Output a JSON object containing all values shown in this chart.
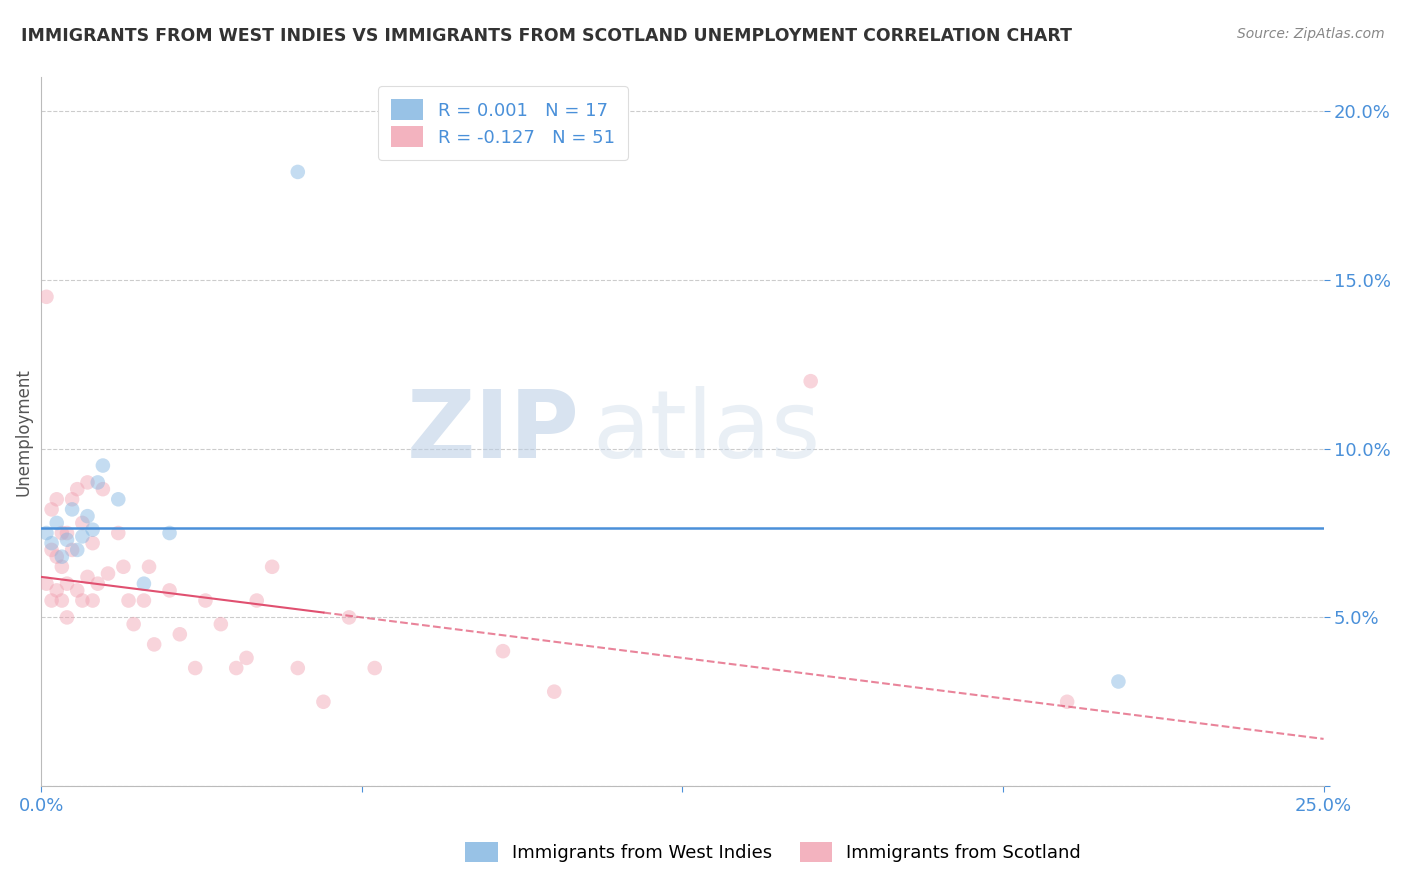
{
  "title": "IMMIGRANTS FROM WEST INDIES VS IMMIGRANTS FROM SCOTLAND UNEMPLOYMENT CORRELATION CHART",
  "source": "Source: ZipAtlas.com",
  "ylabel": "Unemployment",
  "xlim": [
    0.0,
    0.25
  ],
  "ylim": [
    0.0,
    0.21
  ],
  "yticks": [
    0.0,
    0.05,
    0.1,
    0.15,
    0.2
  ],
  "ytick_labels": [
    "",
    "5.0%",
    "10.0%",
    "15.0%",
    "20.0%"
  ],
  "xticks": [
    0.0,
    0.0625,
    0.125,
    0.1875,
    0.25
  ],
  "xtick_labels": [
    "0.0%",
    "",
    "",
    "",
    "25.0%"
  ],
  "series1_name": "Immigrants from West Indies",
  "series1_color": "#7EB3E0",
  "series1_R": "0.001",
  "series1_N": "17",
  "series1_x": [
    0.001,
    0.002,
    0.003,
    0.004,
    0.005,
    0.006,
    0.007,
    0.008,
    0.009,
    0.01,
    0.011,
    0.012,
    0.015,
    0.02,
    0.025,
    0.05,
    0.21
  ],
  "series1_y": [
    0.075,
    0.072,
    0.078,
    0.068,
    0.073,
    0.082,
    0.07,
    0.074,
    0.08,
    0.076,
    0.09,
    0.095,
    0.085,
    0.06,
    0.075,
    0.182,
    0.031
  ],
  "series2_name": "Immigrants from Scotland",
  "series2_color": "#F0A0B0",
  "series2_R": "-0.127",
  "series2_N": "51",
  "series2_x": [
    0.001,
    0.001,
    0.002,
    0.002,
    0.002,
    0.003,
    0.003,
    0.003,
    0.004,
    0.004,
    0.004,
    0.005,
    0.005,
    0.005,
    0.006,
    0.006,
    0.007,
    0.007,
    0.008,
    0.008,
    0.009,
    0.009,
    0.01,
    0.01,
    0.011,
    0.012,
    0.013,
    0.015,
    0.016,
    0.017,
    0.018,
    0.02,
    0.021,
    0.022,
    0.025,
    0.027,
    0.03,
    0.032,
    0.035,
    0.038,
    0.04,
    0.042,
    0.045,
    0.05,
    0.055,
    0.06,
    0.065,
    0.09,
    0.1,
    0.15,
    0.2
  ],
  "series2_y": [
    0.06,
    0.145,
    0.055,
    0.07,
    0.082,
    0.058,
    0.068,
    0.085,
    0.055,
    0.075,
    0.065,
    0.06,
    0.075,
    0.05,
    0.07,
    0.085,
    0.058,
    0.088,
    0.055,
    0.078,
    0.062,
    0.09,
    0.055,
    0.072,
    0.06,
    0.088,
    0.063,
    0.075,
    0.065,
    0.055,
    0.048,
    0.055,
    0.065,
    0.042,
    0.058,
    0.045,
    0.035,
    0.055,
    0.048,
    0.035,
    0.038,
    0.055,
    0.065,
    0.035,
    0.025,
    0.05,
    0.035,
    0.04,
    0.028,
    0.12,
    0.025
  ],
  "watermark_zip": "ZIP",
  "watermark_atlas": "atlas",
  "background_color": "#FFFFFF",
  "grid_color": "#CCCCCC",
  "title_color": "#333333",
  "axis_label_color": "#555555",
  "ytick_color": "#4A90D9",
  "xtick_color": "#4A90D9",
  "legend_text_color": "#4A90D9",
  "marker_size": 110,
  "marker_alpha": 0.45,
  "line1_color": "#4A90D9",
  "line1_y": 0.0765,
  "line2_color": "#E05070",
  "line2_solid_end": 0.055,
  "line2_x0": 0.0,
  "line2_y0": 0.062,
  "line2_x1": 0.25,
  "line2_y1": 0.014
}
